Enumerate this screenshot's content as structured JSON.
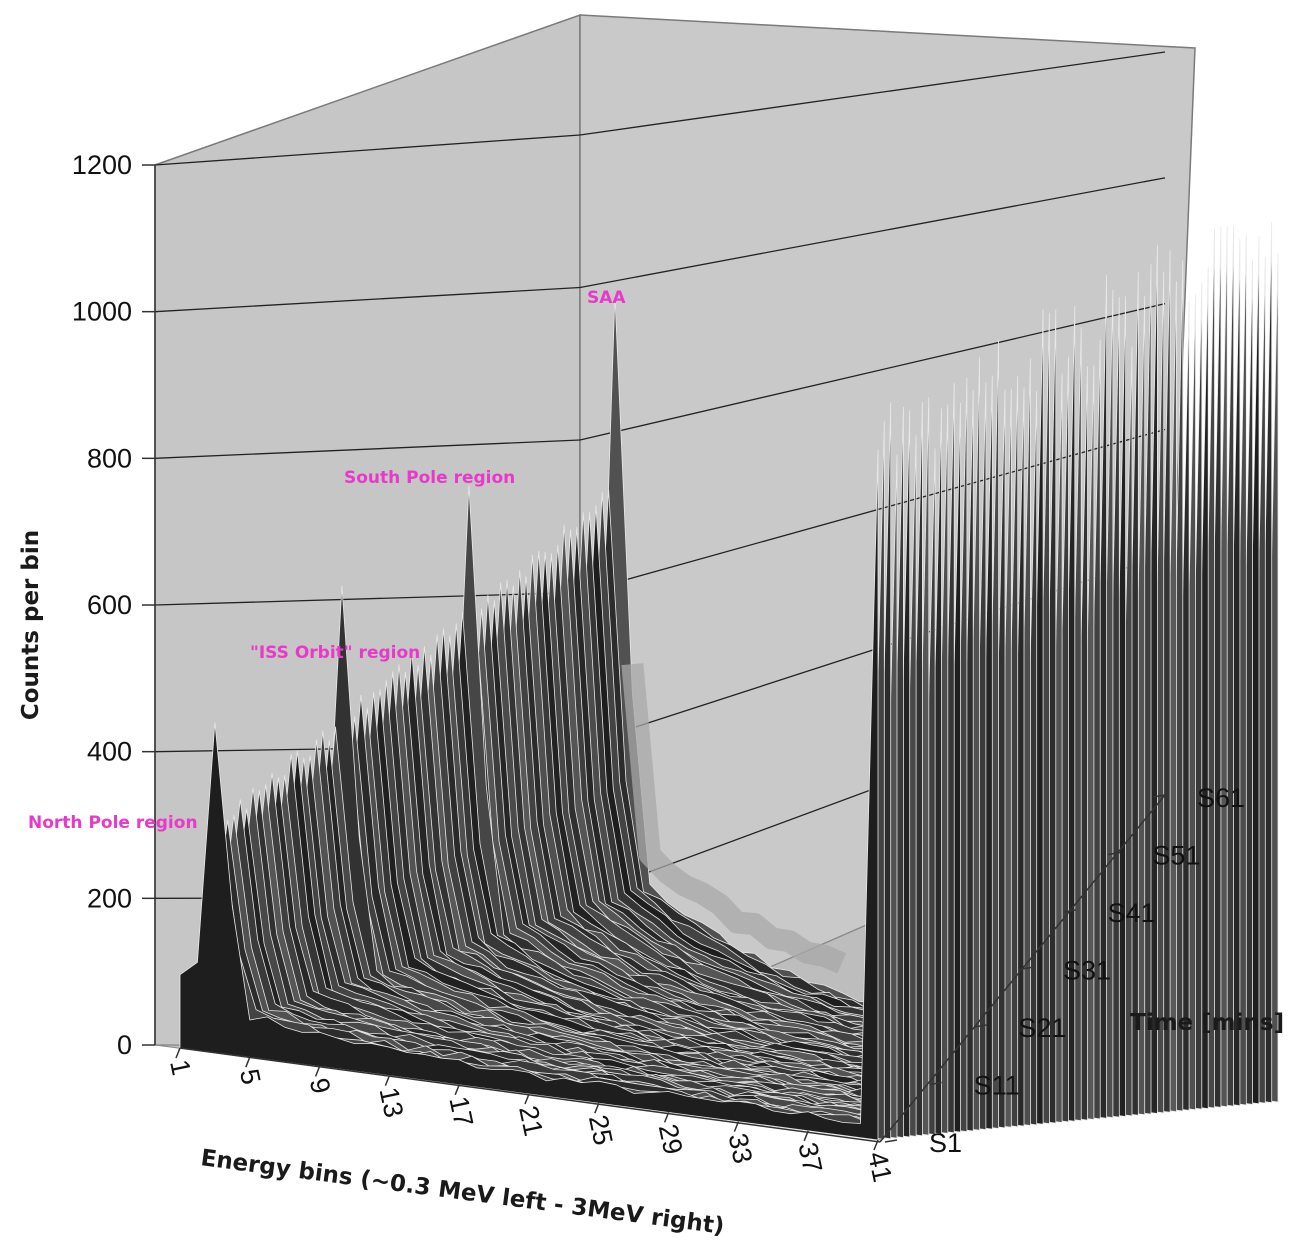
{
  "chart_data": {
    "type": "area",
    "style": "3d-waterfall",
    "title": "",
    "ylabel": "Counts per bin",
    "xlabel": "Energy bins (~0.3 MeV left - 3MeV right)",
    "zlabel": "Time [mins]",
    "ylim": [
      0,
      1200
    ],
    "y_ticks": [
      "0",
      "200",
      "400",
      "600",
      "800",
      "1000",
      "1200"
    ],
    "x_ticks": [
      "1",
      "5",
      "9",
      "13",
      "17",
      "21",
      "25",
      "29",
      "33",
      "37",
      "41"
    ],
    "z_ticks": [
      "S1",
      "S11",
      "S21",
      "S31",
      "S41",
      "S51",
      "S61"
    ],
    "energy_bins": 41,
    "series_count": 64,
    "grid": true,
    "annotations": [
      {
        "text": "North Pole region",
        "series": "S1",
        "peak_bin": 3,
        "peak_value": 450
      },
      {
        "text": "\"ISS Orbit\" region",
        "series": "S21",
        "peak_bin": 3,
        "peak_value": 620
      },
      {
        "text": "South Pole region",
        "series": "S41",
        "peak_bin": 3,
        "peak_value": 740
      },
      {
        "text": "SAA",
        "series": "S61",
        "peak_bin": 3,
        "peak_value": 980
      }
    ],
    "high_energy_edge": {
      "bin": 41,
      "values_by_series": {
        "S1": 1000,
        "S21": 1050,
        "S41": 1150,
        "S61": 1200
      }
    },
    "colors": {
      "wall": "#c6c6c6",
      "floor": "#bdbdbd",
      "surface": "#2e2e2e",
      "annotation": "#e839c8"
    }
  }
}
